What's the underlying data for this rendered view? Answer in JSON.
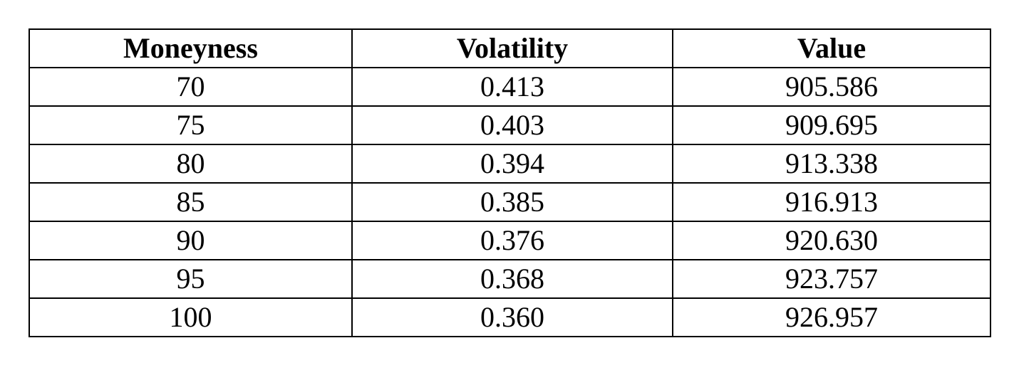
{
  "table": {
    "headers": [
      "Moneyness",
      "Volatility",
      "Value"
    ],
    "rows": [
      [
        "70",
        "0.413",
        "905.586"
      ],
      [
        "75",
        "0.403",
        "909.695"
      ],
      [
        "80",
        "0.394",
        "913.338"
      ],
      [
        "85",
        "0.385",
        "916.913"
      ],
      [
        "90",
        "0.376",
        "920.630"
      ],
      [
        "95",
        "0.368",
        "923.757"
      ],
      [
        "100",
        "0.360",
        "926.957"
      ]
    ]
  }
}
